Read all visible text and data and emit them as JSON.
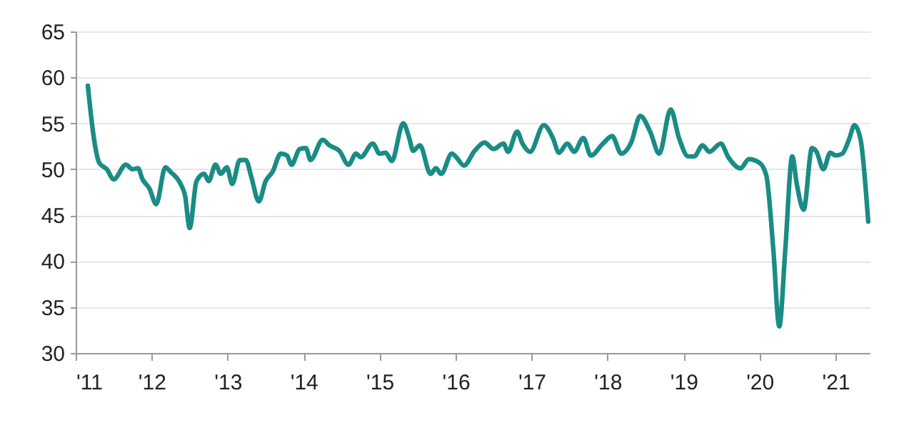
{
  "chart_data": {
    "type": "line",
    "x": [
      2011.16,
      2011.25,
      2011.31,
      2011.41,
      2011.5,
      2011.66,
      2011.75,
      2011.82,
      2011.88,
      2011.97,
      2012.06,
      2012.18,
      2012.25,
      2012.38,
      2012.44,
      2012.5,
      2012.59,
      2012.69,
      2012.75,
      2012.84,
      2012.91,
      2012.99,
      2013.06,
      2013.16,
      2013.24,
      2013.31,
      2013.41,
      2013.5,
      2013.59,
      2013.7,
      2013.78,
      2013.84,
      2013.95,
      2014.03,
      2014.09,
      2014.25,
      2014.34,
      2014.47,
      2014.59,
      2014.69,
      2014.75,
      2014.91,
      2015.0,
      2015.08,
      2015.16,
      2015.31,
      2015.39,
      2015.44,
      2015.53,
      2015.67,
      2015.74,
      2015.81,
      2015.95,
      2016.01,
      2016.11,
      2016.25,
      2016.38,
      2016.5,
      2016.63,
      2016.69,
      2016.81,
      2016.88,
      2016.98,
      2017.16,
      2017.28,
      2017.36,
      2017.47,
      2017.56,
      2017.68,
      2017.78,
      2017.94,
      2018.06,
      2018.18,
      2018.31,
      2018.43,
      2018.56,
      2018.68,
      2018.83,
      2018.94,
      2019.06,
      2019.14,
      2019.25,
      2019.34,
      2019.49,
      2019.59,
      2019.75,
      2019.86,
      2020.0,
      2020.09,
      2020.18,
      2020.26,
      2020.34,
      2020.43,
      2020.49,
      2020.58,
      2020.69,
      2020.75,
      2020.84,
      2020.93,
      2021.0,
      2021.09,
      2021.18,
      2021.25,
      2021.33,
      2021.43
    ],
    "series": [
      {
        "color": "#1a8c85",
        "values": [
          59.1,
          52.8,
          50.7,
          50.0,
          48.9,
          50.5,
          50.0,
          50.1,
          48.9,
          47.9,
          46.2,
          50.2,
          49.7,
          48.4,
          47.1,
          43.6,
          48.7,
          49.5,
          48.7,
          50.5,
          49.5,
          50.2,
          48.4,
          51.0,
          51.0,
          49.2,
          46.5,
          48.7,
          49.7,
          51.7,
          51.5,
          50.5,
          52.2,
          52.3,
          51.0,
          53.2,
          52.6,
          52.0,
          50.5,
          51.7,
          51.3,
          52.8,
          51.7,
          51.8,
          50.9,
          55.0,
          53.4,
          52.0,
          52.6,
          49.5,
          50.1,
          49.5,
          51.7,
          51.3,
          50.4,
          52.0,
          52.9,
          52.2,
          52.8,
          51.9,
          54.1,
          52.8,
          51.9,
          54.8,
          53.4,
          51.8,
          52.8,
          51.9,
          53.4,
          51.5,
          52.8,
          53.6,
          51.7,
          52.9,
          55.8,
          54.1,
          51.7,
          56.5,
          53.4,
          51.4,
          51.4,
          52.6,
          51.9,
          52.8,
          51.3,
          50.1,
          51.1,
          50.7,
          49.3,
          41.4,
          32.9,
          41.4,
          51.4,
          48.4,
          45.6,
          52.3,
          51.9,
          50.0,
          51.8,
          51.5,
          51.7,
          53.3,
          54.8,
          53.2,
          44.3
        ]
      }
    ],
    "xlim": [
      2011,
      2021.45
    ],
    "xticks": [
      {
        "value": 2011,
        "label": "'11"
      },
      {
        "value": 2012,
        "label": "'12"
      },
      {
        "value": 2013,
        "label": "'13"
      },
      {
        "value": 2014,
        "label": "'14"
      },
      {
        "value": 2015,
        "label": "'15"
      },
      {
        "value": 2016,
        "label": "'16"
      },
      {
        "value": 2017,
        "label": "'17"
      },
      {
        "value": 2018,
        "label": "'18"
      },
      {
        "value": 2019,
        "label": "'19"
      },
      {
        "value": 2020,
        "label": "'20"
      },
      {
        "value": 2021,
        "label": "'21"
      }
    ],
    "ylim": [
      30,
      65
    ],
    "yticks": [
      30,
      35,
      40,
      45,
      50,
      55,
      60,
      65
    ],
    "grid": "y",
    "marker": "none",
    "line_style": "solid"
  }
}
